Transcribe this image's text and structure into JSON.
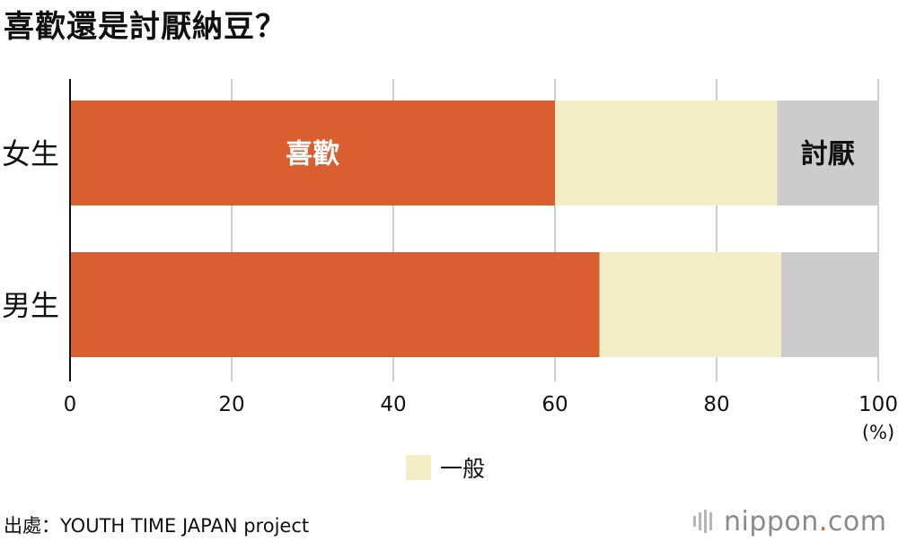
{
  "title": "喜歡還是討厭納豆？",
  "chart_data": {
    "type": "bar",
    "orientation": "horizontal",
    "stacked": true,
    "title": "喜歡還是討厭納豆？",
    "categories": [
      "女生",
      "男生"
    ],
    "series": [
      {
        "name": "喜歡",
        "values": [
          60,
          65.5
        ],
        "color": "#d95f30",
        "inline_label": "喜歡",
        "inline_label_color": "#ffffff"
      },
      {
        "name": "一般",
        "values": [
          27.5,
          22.5
        ],
        "color": "#f3eec6",
        "inline_label": "",
        "inline_label_color": "#111111"
      },
      {
        "name": "討厭",
        "values": [
          12.5,
          12
        ],
        "color": "#cccccc",
        "inline_label": "討厭",
        "inline_label_color": "#111111"
      }
    ],
    "xlim": [
      0,
      100
    ],
    "xticks": [
      0,
      20,
      40,
      60,
      80,
      100
    ],
    "xtick_labels": [
      "0",
      "20",
      "40",
      "60",
      "80",
      "100"
    ],
    "xunit": "(%)",
    "grid": true
  },
  "legend": {
    "label": "一般",
    "color": "#f3eec6"
  },
  "source": "出處：YOUTH TIME JAPAN project",
  "brand": {
    "name": "nippon",
    "dot": ".",
    "suffix": "com"
  }
}
